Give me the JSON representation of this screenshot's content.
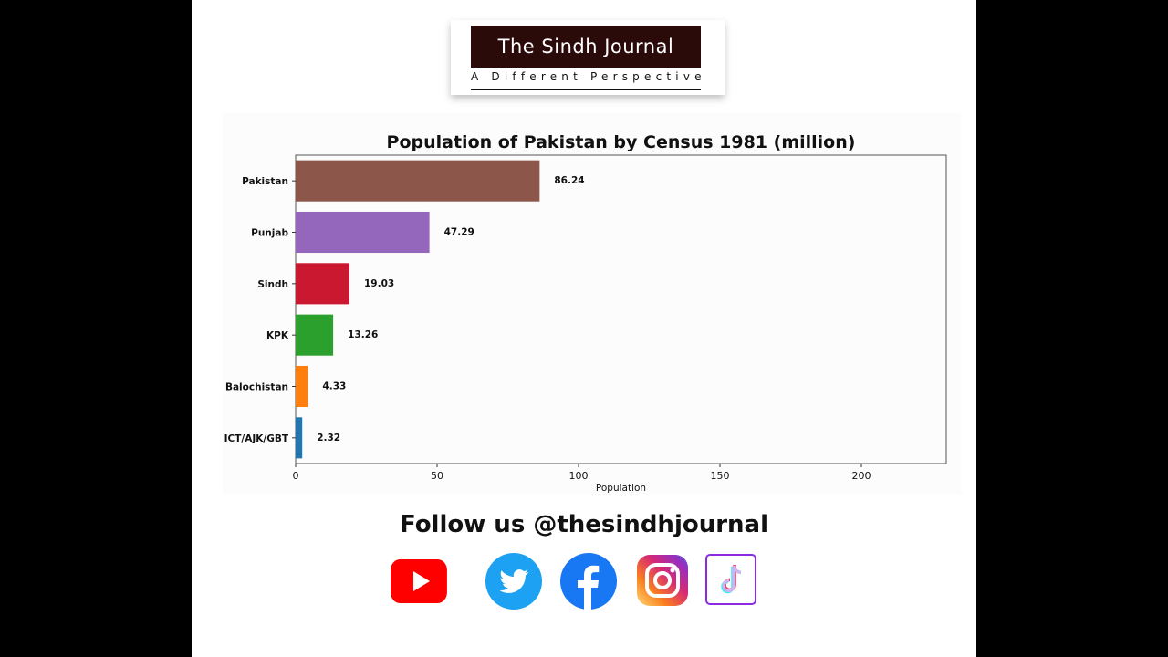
{
  "logo": {
    "title": "The Sindh Journal",
    "tagline": "A Different Perspective"
  },
  "chart_data": {
    "type": "bar",
    "orientation": "horizontal",
    "title": "Population of Pakistan by Census 1981 (million)",
    "xlabel": "Population",
    "ylabel": "",
    "categories": [
      "Pakistan",
      "Punjab",
      "Sindh",
      "KPK",
      "Balochistan",
      "ICT/AJK/GBT"
    ],
    "values": [
      86.24,
      47.29,
      19.03,
      13.26,
      4.33,
      2.32
    ],
    "value_labels": [
      "86.24",
      "47.29",
      "19.03",
      "13.26",
      "4.33",
      "2.32"
    ],
    "colors": [
      "#8c564b",
      "#9467bd",
      "#c9182f",
      "#2ca02c",
      "#ff7f0e",
      "#1f77b4"
    ],
    "xlim": [
      0,
      230
    ],
    "xticks": [
      0,
      50,
      100,
      150,
      200
    ],
    "grid": false,
    "legend": "none"
  },
  "follow": {
    "text": "Follow us @thesindhjournal"
  },
  "socials": [
    {
      "name": "youtube-icon",
      "color": "#ff0000"
    },
    {
      "name": "twitter-icon",
      "color": "#1da1f2"
    },
    {
      "name": "facebook-icon",
      "color": "#1877f2"
    },
    {
      "name": "instagram-icon",
      "color": "#d62976"
    },
    {
      "name": "tiktok-icon",
      "color": "#8a2be2"
    }
  ]
}
